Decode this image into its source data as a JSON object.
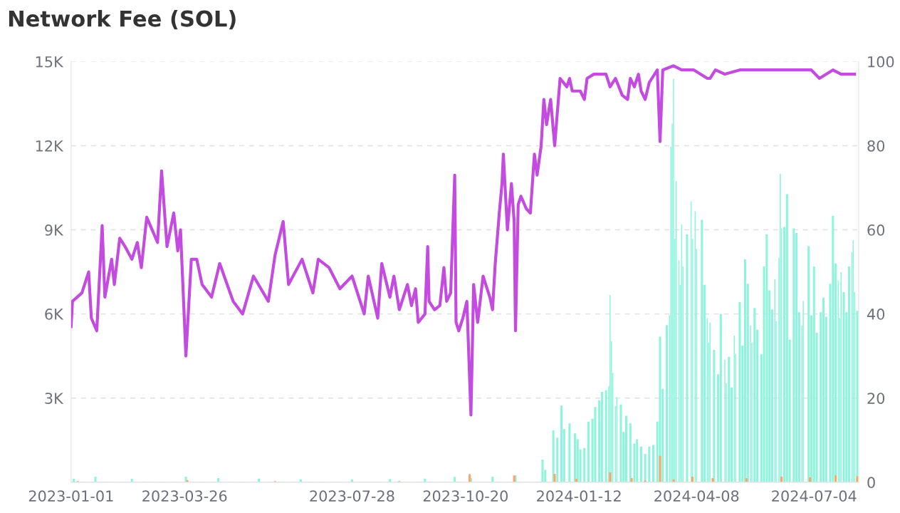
{
  "chart_data": {
    "type": "bar",
    "title": "Network Fee (SOL)",
    "xlim": [
      "2023-01-01",
      "2024-08-06"
    ],
    "xticks": [
      {
        "value": "2023-01-01",
        "label": "2023-01-01"
      },
      {
        "value": "2023-03-26",
        "label": "2023-03-26"
      },
      {
        "value": "2023-07-28",
        "label": "2023-07-28"
      },
      {
        "value": "2023-10-20",
        "label": "2023-10-20"
      },
      {
        "value": "2024-01-12",
        "label": "2024-01-12"
      },
      {
        "value": "2024-04-08",
        "label": "2024-04-08"
      },
      {
        "value": "2024-07-04",
        "label": "2024-07-04"
      }
    ],
    "ylim": [
      0,
      15000
    ],
    "yticks": [
      {
        "value": 0,
        "label": null
      },
      {
        "value": 3000,
        "label": "3K"
      },
      {
        "value": 6000,
        "label": "6K"
      },
      {
        "value": 9000,
        "label": "9K"
      },
      {
        "value": 12000,
        "label": "12K"
      },
      {
        "value": 15000,
        "label": "15K"
      }
    ],
    "y2lim": [
      0,
      100
    ],
    "y2ticks": [
      0,
      20,
      40,
      60,
      80,
      100
    ],
    "grid": "y",
    "series": [
      {
        "color": "#8ef4dc",
        "x": [
          "2023-01-03",
          "2023-01-19",
          "2023-02-15",
          "2023-03-27",
          "2023-04-20",
          "2023-05-20",
          "2023-06-20",
          "2023-07-28",
          "2023-08-25",
          "2023-09-20",
          "2023-10-12",
          "2023-10-24",
          "2023-11-09",
          "2023-11-26",
          "2023-12-16",
          "2023-12-18",
          "2023-12-24",
          "2023-12-27",
          "2023-12-30",
          "2024-01-01",
          "2024-01-05",
          "2024-01-09",
          "2024-01-11",
          "2024-01-13",
          "2024-01-16",
          "2024-01-19",
          "2024-01-22",
          "2024-01-24",
          "2024-01-27",
          "2024-01-29",
          "2024-02-01",
          "2024-02-03",
          "2024-02-04",
          "2024-02-05",
          "2024-02-06",
          "2024-02-08",
          "2024-02-09",
          "2024-02-12",
          "2024-02-14",
          "2024-02-16",
          "2024-02-19",
          "2024-02-22",
          "2024-02-24",
          "2024-02-27",
          "2024-03-01",
          "2024-03-04",
          "2024-03-07",
          "2024-03-10",
          "2024-03-12",
          "2024-03-14",
          "2024-03-17",
          "2024-03-19",
          "2024-03-20",
          "2024-03-21",
          "2024-03-22",
          "2024-03-23",
          "2024-03-24",
          "2024-03-26",
          "2024-03-27",
          "2024-03-28",
          "2024-03-29",
          "2024-04-01",
          "2024-04-04",
          "2024-04-05",
          "2024-04-07",
          "2024-04-08",
          "2024-04-12",
          "2024-04-14",
          "2024-04-16",
          "2024-04-17",
          "2024-04-18",
          "2024-04-21",
          "2024-04-24",
          "2024-04-26",
          "2024-04-29",
          "2024-04-30",
          "2024-05-02",
          "2024-05-04",
          "2024-05-06",
          "2024-05-07",
          "2024-05-10",
          "2024-05-12",
          "2024-05-14",
          "2024-05-16",
          "2024-05-18",
          "2024-05-19",
          "2024-05-21",
          "2024-05-23",
          "2024-05-26",
          "2024-05-28",
          "2024-05-30",
          "2024-06-01",
          "2024-06-03",
          "2024-06-05",
          "2024-06-06",
          "2024-06-08",
          "2024-06-09",
          "2024-06-10",
          "2024-06-12",
          "2024-06-14",
          "2024-06-16",
          "2024-06-19",
          "2024-06-21",
          "2024-06-23",
          "2024-06-25",
          "2024-06-26",
          "2024-06-30",
          "2024-07-02",
          "2024-07-04",
          "2024-07-06",
          "2024-07-09",
          "2024-07-11",
          "2024-07-13",
          "2024-07-16",
          "2024-07-18",
          "2024-07-20",
          "2024-07-22",
          "2024-07-23",
          "2024-07-24",
          "2024-07-26",
          "2024-07-28",
          "2024-07-30",
          "2024-08-01",
          "2024-08-02",
          "2024-08-03",
          "2024-08-05"
        ],
        "values": [
          120,
          200,
          120,
          200,
          150,
          130,
          100,
          100,
          110,
          130,
          190,
          150,
          200,
          240,
          810,
          440,
          1850,
          1590,
          2730,
          1900,
          2100,
          1740,
          1530,
          1170,
          1220,
          2160,
          2260,
          2680,
          2920,
          3220,
          3280,
          3430,
          6680,
          5030,
          3900,
          2720,
          3030,
          2770,
          1790,
          2370,
          2100,
          1380,
          1530,
          1270,
          1010,
          1270,
          1330,
          2160,
          5190,
          3330,
          5600,
          5950,
          11970,
          12790,
          14390,
          8680,
          10740,
          7910,
          7040,
          9200,
          7700,
          8840,
          10020,
          8680,
          9660,
          8320,
          9360,
          7040,
          5850,
          4980,
          5690,
          4720,
          3850,
          6000,
          4370,
          3540,
          4470,
          3380,
          5230,
          4560,
          6420,
          4870,
          7950,
          7080,
          5590,
          4980,
          6210,
          5440,
          4560,
          7690,
          8840,
          6840,
          6160,
          7240,
          5740,
          8000,
          11000,
          9050,
          9100,
          10270,
          5080,
          9050,
          8890,
          6060,
          5590,
          6470,
          8420,
          5950,
          7690,
          5330,
          6060,
          6580,
          5900,
          7080,
          9500,
          7800,
          7190,
          5850,
          7490,
          6780,
          6060,
          7690,
          8210,
          8630,
          6780,
          6110
        ]
      },
      {
        "color": "#ffa36b",
        "x": [
          "2023-01-06",
          "2023-03-28",
          "2023-06-01",
          "2023-09-01",
          "2023-10-23",
          "2023-11-25",
          "2023-12-25",
          "2024-01-10",
          "2024-02-04",
          "2024-02-20",
          "2024-03-01",
          "2024-03-12",
          "2024-03-22",
          "2024-04-05",
          "2024-04-20",
          "2024-05-15",
          "2024-06-10",
          "2024-07-01",
          "2024-07-20",
          "2024-08-05"
        ],
        "values": [
          40,
          80,
          40,
          40,
          290,
          240,
          300,
          120,
          350,
          150,
          60,
          940,
          100,
          200,
          150,
          150,
          200,
          180,
          250,
          220
        ]
      },
      {
        "type": "line",
        "axis": "y2",
        "color": "#c44be0",
        "x": [
          "2023-01-01",
          "2023-01-02",
          "2023-01-09",
          "2023-01-14",
          "2023-01-16",
          "2023-01-20",
          "2023-01-24",
          "2023-01-26",
          "2023-01-31",
          "2023-02-02",
          "2023-02-06",
          "2023-02-10",
          "2023-02-15",
          "2023-02-19",
          "2023-02-22",
          "2023-02-26",
          "2023-03-02",
          "2023-03-06",
          "2023-03-09",
          "2023-03-13",
          "2023-03-18",
          "2023-03-21",
          "2023-03-23",
          "2023-03-27",
          "2023-03-31",
          "2023-04-04",
          "2023-04-08",
          "2023-04-15",
          "2023-04-21",
          "2023-05-01",
          "2023-05-08",
          "2023-05-16",
          "2023-05-27",
          "2023-06-01",
          "2023-06-07",
          "2023-06-11",
          "2023-06-21",
          "2023-06-29",
          "2023-07-03",
          "2023-07-11",
          "2023-07-19",
          "2023-07-28",
          "2023-08-06",
          "2023-08-09",
          "2023-08-16",
          "2023-08-19",
          "2023-08-25",
          "2023-08-28",
          "2023-09-01",
          "2023-09-07",
          "2023-09-10",
          "2023-09-13",
          "2023-09-15",
          "2023-09-20",
          "2023-09-22",
          "2023-09-23",
          "2023-09-27",
          "2023-10-01",
          "2023-10-04",
          "2023-10-06",
          "2023-10-09",
          "2023-10-12",
          "2023-10-13",
          "2023-10-15",
          "2023-10-18",
          "2023-10-21",
          "2023-10-24",
          "2023-10-26",
          "2023-10-29",
          "2023-11-02",
          "2023-11-04",
          "2023-11-07",
          "2023-11-09",
          "2023-11-11",
          "2023-11-14",
          "2023-11-16",
          "2023-11-17",
          "2023-11-20",
          "2023-11-23",
          "2023-11-25",
          "2023-11-26",
          "2023-11-28",
          "2023-11-30",
          "2023-12-04",
          "2023-12-07",
          "2023-12-10",
          "2023-12-12",
          "2023-12-15",
          "2023-12-17",
          "2023-12-19",
          "2023-12-22",
          "2023-12-25",
          "2023-12-29",
          "2024-01-03",
          "2024-01-05",
          "2024-01-07",
          "2024-01-13",
          "2024-01-16",
          "2024-01-18",
          "2024-01-23",
          "2024-02-01",
          "2024-02-04",
          "2024-02-08",
          "2024-02-13",
          "2024-02-17",
          "2024-02-19",
          "2024-02-22",
          "2024-02-25",
          "2024-02-27",
          "2024-03-01",
          "2024-03-04",
          "2024-03-10",
          "2024-03-12",
          "2024-03-14",
          "2024-03-22",
          "2024-03-28",
          "2024-04-06",
          "2024-04-16",
          "2024-04-18",
          "2024-04-22",
          "2024-04-29",
          "2024-05-10",
          "2024-05-27",
          "2024-06-09",
          "2024-06-18",
          "2024-07-02",
          "2024-07-08",
          "2024-07-18",
          "2024-07-24",
          "2024-08-03"
        ],
        "values": [
          37,
          43,
          45,
          50,
          39,
          36,
          61,
          44,
          53,
          47,
          58,
          56,
          53,
          57,
          51,
          63,
          60,
          57,
          74,
          56,
          64,
          55,
          60,
          30,
          53,
          53,
          47,
          44,
          52,
          43,
          40,
          49,
          43,
          54,
          62,
          47,
          53,
          45,
          53,
          51,
          46,
          49,
          40,
          49,
          39,
          52,
          44,
          49,
          41,
          47,
          42,
          46,
          38,
          40,
          56,
          43,
          41,
          42,
          51,
          43,
          45,
          73,
          38,
          36,
          39,
          43,
          16,
          47,
          38,
          49,
          47,
          44,
          41,
          52,
          64,
          71,
          78,
          60,
          71,
          62,
          36,
          66,
          68,
          65,
          64,
          78,
          73,
          80,
          91,
          85,
          91,
          80,
          96,
          94,
          96,
          93,
          93,
          91,
          96,
          97,
          97,
          94,
          96,
          92,
          91,
          96,
          94,
          97,
          93,
          91,
          95,
          98,
          81,
          98,
          99,
          98,
          98,
          96,
          96,
          98,
          97,
          98,
          98,
          98,
          98,
          98,
          96,
          98,
          97,
          97
        ]
      }
    ]
  }
}
